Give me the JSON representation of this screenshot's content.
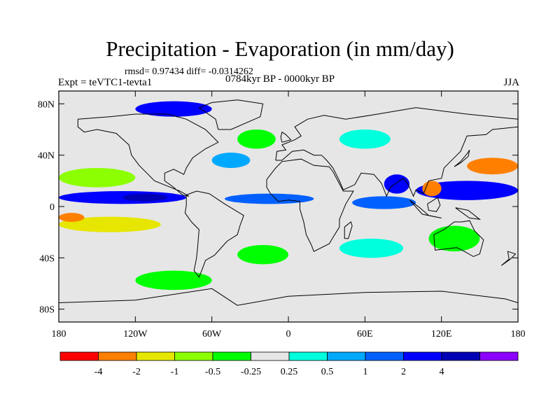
{
  "chart_data": {
    "type": "heatmap",
    "title": "Precipitation - Evaporation (in mm/day)",
    "stats_text": "rmsd= 0.97434 diff= -0.0314262",
    "left_label": "Expt = teVTC1-tevta1",
    "center_label": "0784kyr BP - 0000kyr BP",
    "right_label": "JJA",
    "xlabel": "",
    "ylabel": "",
    "x_ticks": [
      "180",
      "120W",
      "60W",
      "0",
      "60E",
      "120E",
      "180"
    ],
    "y_ticks": [
      "80N",
      "40N",
      "0",
      "40S",
      "80S"
    ],
    "x_range": [
      -180,
      180
    ],
    "y_range": [
      -90,
      90
    ],
    "colorbar": {
      "colors": [
        "#ff0000",
        "#ff8000",
        "#e6e600",
        "#8cff00",
        "#00ff00",
        "#e6e6e6",
        "#00ffdc",
        "#00a8ff",
        "#0060ff",
        "#0000ff",
        "#0000b4",
        "#8c00ff"
      ],
      "labels": [
        "-4",
        "-2",
        "-1",
        "-0.5",
        "-0.25",
        "0.25",
        "0.5",
        "1",
        "2",
        "4"
      ],
      "boundaries": [
        -4,
        -2,
        -1,
        -0.5,
        -0.25,
        0.25,
        0.5,
        1,
        2,
        4
      ]
    },
    "field_regions": [
      {
        "name": "band-eq-pacific-east",
        "lon": [
          -180,
          -80
        ],
        "lat": [
          2,
          12
        ],
        "value": 2.5
      },
      {
        "name": "eq-pacific-core",
        "lon": [
          -130,
          -95
        ],
        "lat": [
          4,
          10
        ],
        "value": 5
      },
      {
        "name": "band-eq-atlantic",
        "lon": [
          -50,
          20
        ],
        "lat": [
          2,
          10
        ],
        "value": 1.5
      },
      {
        "name": "band-eq-indian",
        "lon": [
          50,
          100
        ],
        "lat": [
          -2,
          8
        ],
        "value": 1.5
      },
      {
        "name": "band-w-pacific",
        "lon": [
          100,
          180
        ],
        "lat": [
          5,
          20
        ],
        "value": 2.5
      },
      {
        "name": "n-pacific-dry",
        "lon": [
          -180,
          -120
        ],
        "lat": [
          15,
          30
        ],
        "value": -0.6
      },
      {
        "name": "s-pacific-dry",
        "lon": [
          -180,
          -100
        ],
        "lat": [
          -20,
          -8
        ],
        "value": -1.5
      },
      {
        "name": "s-pacific-orange",
        "lon": [
          -180,
          -160
        ],
        "lat": [
          -12,
          -5
        ],
        "value": -3
      },
      {
        "name": "w-pacific-ne",
        "lon": [
          140,
          180
        ],
        "lat": [
          25,
          38
        ],
        "value": -2.5
      },
      {
        "name": "india-bay",
        "lon": [
          75,
          95
        ],
        "lat": [
          10,
          25
        ],
        "value": 2.5
      },
      {
        "name": "se-asia-red",
        "lon": [
          105,
          120
        ],
        "lat": [
          8,
          20
        ],
        "value": -3.5
      },
      {
        "name": "n-atlantic-green",
        "lon": [
          -40,
          -10
        ],
        "lat": [
          45,
          60
        ],
        "value": -0.4
      },
      {
        "name": "n-atlantic-blue",
        "lon": [
          -60,
          -30
        ],
        "lat": [
          30,
          42
        ],
        "value": 0.8
      },
      {
        "name": "eurasia-cyan",
        "lon": [
          40,
          80
        ],
        "lat": [
          45,
          60
        ],
        "value": 0.4
      },
      {
        "name": "arctic-dark",
        "lon": [
          -120,
          -60
        ],
        "lat": [
          70,
          82
        ],
        "value": 2.5
      },
      {
        "name": "s-atlantic-green",
        "lon": [
          -40,
          0
        ],
        "lat": [
          -45,
          -30
        ],
        "value": -0.35
      },
      {
        "name": "s-indian-cyan",
        "lon": [
          40,
          90
        ],
        "lat": [
          -40,
          -25
        ],
        "value": 0.4
      },
      {
        "name": "s-ocean-green",
        "lon": [
          -120,
          -60
        ],
        "lat": [
          -65,
          -50
        ],
        "value": -0.35
      },
      {
        "name": "australia-green",
        "lon": [
          110,
          150
        ],
        "lat": [
          -35,
          -15
        ],
        "value": -0.35
      }
    ]
  }
}
